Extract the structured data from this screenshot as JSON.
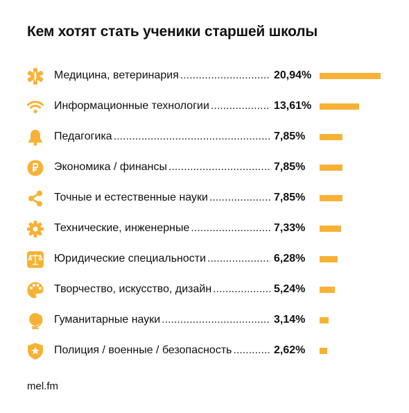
{
  "chart_data": {
    "type": "bar",
    "orientation": "horizontal",
    "title": "Кем хотят стать ученики старшей школы",
    "unit": "%",
    "accent_color": "#f7b236",
    "categories": [
      "Медицина, ветеринария",
      "Информационные технологии",
      "Педагогика",
      "Экономика / финансы",
      "Точные и естественные науки",
      "Технические, инженерные",
      "Юридические специальности",
      "Творчество, искусство, дизайн",
      "Гуманитарные науки",
      "Полиция / военные / безопасность"
    ],
    "values": [
      20.94,
      13.61,
      7.85,
      7.85,
      7.85,
      7.33,
      6.28,
      5.24,
      3.14,
      2.62
    ],
    "value_labels": [
      "20,94%",
      "13,61%",
      "7,85%",
      "7,85%",
      "7,85%",
      "7,33%",
      "6,28%",
      "5,24%",
      "3,14%",
      "2,62%"
    ],
    "icons": [
      "medical-star-icon",
      "wifi-icon",
      "bell-icon",
      "ruble-coin-icon",
      "share-nodes-icon",
      "gear-icon",
      "scales-icon",
      "palette-icon",
      "globe-icon",
      "police-badge-icon"
    ]
  },
  "source": "mel.fm"
}
